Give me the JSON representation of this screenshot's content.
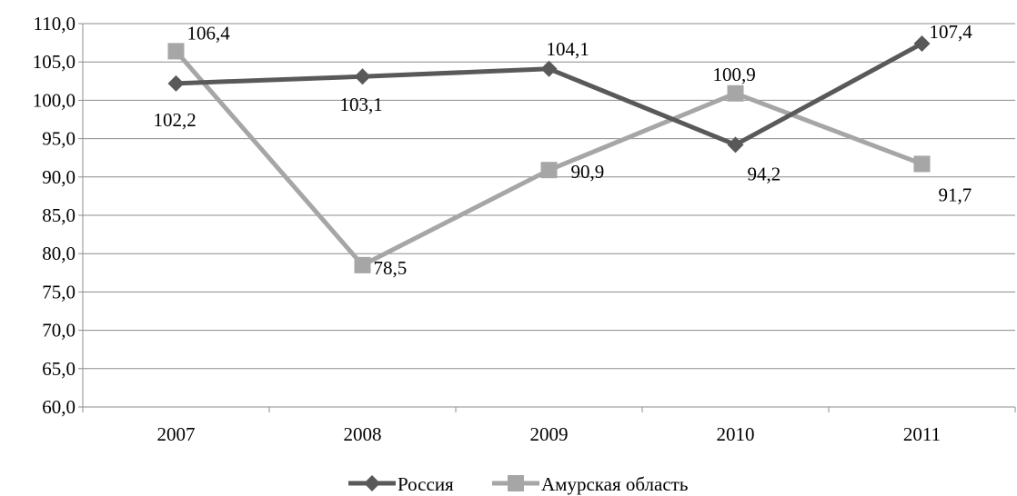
{
  "chart_data": {
    "type": "line",
    "categories": [
      "2007",
      "2008",
      "2009",
      "2010",
      "2011"
    ],
    "ylim": [
      60,
      110
    ],
    "y_ticks": [
      "60,0",
      "65,0",
      "70,0",
      "75,0",
      "80,0",
      "85,0",
      "90,0",
      "95,0",
      "100,0",
      "105,0",
      "110,0"
    ],
    "grid": true,
    "legend_position": "bottom",
    "series": [
      {
        "name": "Россия",
        "values": [
          102.2,
          103.1,
          104.1,
          94.2,
          107.4
        ],
        "labels": [
          "102,2",
          "103,1",
          "104,1",
          "94,2",
          "107,4"
        ],
        "color": "#595959",
        "marker": "diamond"
      },
      {
        "name": "Амурская область",
        "values": [
          106.4,
          78.5,
          90.9,
          100.9,
          91.7
        ],
        "labels": [
          "106,4",
          "78,5",
          "90,9",
          "100,9",
          "91,7"
        ],
        "color": "#a6a6a6",
        "marker": "square"
      }
    ]
  }
}
